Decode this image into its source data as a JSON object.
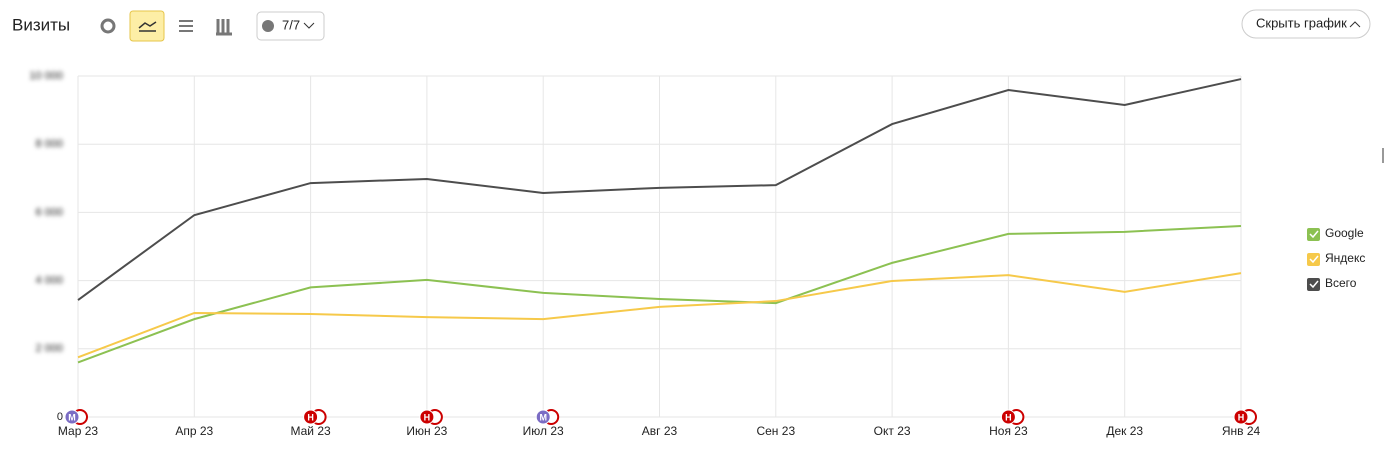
{
  "toolbar": {
    "title": "Визиты",
    "filter": "7/7",
    "hide_button": "Скрыть график"
  },
  "chart_data": {
    "type": "line",
    "categories": [
      "Мар 23",
      "Апр 23",
      "Май 23",
      "Июн 23",
      "Июл 23",
      "Авг 23",
      "Сен 23",
      "Окт 23",
      "Ноя 23",
      "Дек 23",
      "Янв 24"
    ],
    "series": [
      {
        "name": "Google",
        "color": "#8cc152",
        "values": [
          1600,
          2870,
          3800,
          4020,
          3640,
          3460,
          3340,
          4520,
          5370,
          5430,
          5600
        ]
      },
      {
        "name": "Яндекс",
        "color": "#f6c94a",
        "values": [
          1750,
          3050,
          3020,
          2930,
          2870,
          3230,
          3400,
          3990,
          4160,
          3670,
          4220
        ]
      },
      {
        "name": "Всего",
        "color": "#4d4d4d",
        "values": [
          3430,
          5920,
          6860,
          6980,
          6570,
          6720,
          6800,
          8590,
          9590,
          9150,
          9910
        ]
      }
    ],
    "ylim": [
      0,
      10000
    ],
    "yticks": [
      0,
      {
        "value": 2000,
        "label": "2 000"
      },
      {
        "value": 4000,
        "label": "4 000"
      },
      {
        "value": 6000,
        "label": "6 000"
      },
      {
        "value": 8000,
        "label": "8 000"
      },
      {
        "value": 10000,
        "label": "10 000"
      }
    ],
    "grid": true,
    "legend": "right",
    "markers": [
      {
        "x": 0,
        "letter": "М",
        "color": "#7b6cc4"
      },
      {
        "x": 2,
        "letter": "Н",
        "color": "#cc0000"
      },
      {
        "x": 3,
        "letter": "Н",
        "color": "#cc0000"
      },
      {
        "x": 4,
        "letter": "М",
        "color": "#7b6cc4"
      },
      {
        "x": 8,
        "letter": "Н",
        "color": "#cc0000"
      },
      {
        "x": 10,
        "letter": "Н",
        "color": "#cc0000"
      }
    ]
  }
}
